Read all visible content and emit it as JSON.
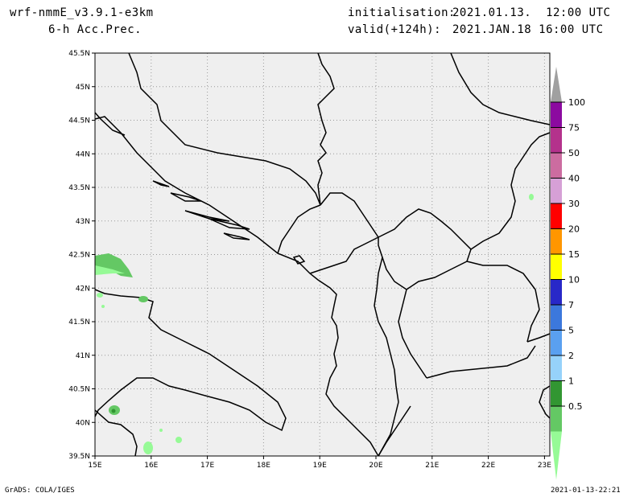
{
  "header": {
    "model": "wrf-nmmE_v3.9.1-e3km",
    "field": "6-h Acc.Prec.",
    "init_label": "initialisation:",
    "init_value": "2021.01.13.  12:00 UTC",
    "valid_label": "valid(+124h):",
    "valid_value": "2021.JAN.18 16:00 UTC"
  },
  "footer": {
    "credit": "GrADS: COLA/IGES",
    "timestamp": "2021-01-13-22:21"
  },
  "map": {
    "lat_labels": [
      "45.5N",
      "45N",
      "44.5N",
      "44N",
      "43.5N",
      "43N",
      "42.5N",
      "42N",
      "41.5N",
      "41N",
      "40.5N",
      "40N",
      "39.5N"
    ],
    "lon_labels": [
      "15E",
      "16E",
      "17E",
      "18E",
      "19E",
      "20E",
      "21E",
      "22E",
      "23E"
    ],
    "colors": {
      "land": "#efefef",
      "border": "#000000",
      "grid": "#999999"
    }
  },
  "legend": {
    "levels": [
      {
        "label": "100",
        "color": "#8c0aa0"
      },
      {
        "label": "75",
        "color": "#b4328c"
      },
      {
        "label": "50",
        "color": "#cc6ca0"
      },
      {
        "label": "40",
        "color": "#d6a0d6"
      },
      {
        "label": "30",
        "color": "#ff0000"
      },
      {
        "label": "20",
        "color": "#ff9600"
      },
      {
        "label": "15",
        "color": "#ffff00"
      },
      {
        "label": "10",
        "color": "#2828c8"
      },
      {
        "label": "7",
        "color": "#3c78dc"
      },
      {
        "label": "5",
        "color": "#5aa0f0"
      },
      {
        "label": "2",
        "color": "#96d2fa"
      },
      {
        "label": "1",
        "color": "#329632"
      },
      {
        "label": "0.5",
        "color": "#64c864"
      }
    ],
    "lowest_color": "#96fa96",
    "cap_color": "#a0a0a0"
  }
}
